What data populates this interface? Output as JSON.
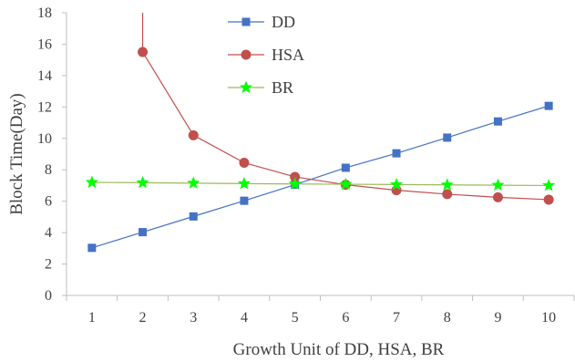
{
  "chart_data": {
    "type": "line",
    "xlabel": "Growth Unit of DD, HSA, BR",
    "ylabel": "Block Time(Day)",
    "x": [
      1,
      2,
      3,
      4,
      5,
      6,
      7,
      8,
      9,
      10
    ],
    "xlim": [
      0.5,
      10.5
    ],
    "ylim": [
      0,
      18
    ],
    "yticks": [
      0,
      2,
      4,
      6,
      8,
      10,
      12,
      14,
      16,
      18
    ],
    "grid": false,
    "legend_position": "top-center",
    "series": [
      {
        "name": "DD",
        "marker": "square",
        "color": "#4472C4",
        "x": [
          1,
          2,
          3,
          4,
          5,
          6,
          7,
          8,
          9,
          10
        ],
        "values": [
          3.03,
          4.03,
          5.03,
          6.03,
          7.05,
          8.13,
          9.05,
          10.05,
          11.08,
          12.07
        ]
      },
      {
        "name": "HSA",
        "marker": "circle",
        "color": "#C0504D",
        "line_extends_above_top": true,
        "x": [
          2,
          3,
          4,
          5,
          6,
          7,
          8,
          9,
          10
        ],
        "values": [
          15.5,
          10.2,
          8.45,
          7.55,
          7.05,
          6.7,
          6.45,
          6.25,
          6.1
        ]
      },
      {
        "name": "BR",
        "marker": "star",
        "color": "#00FF00",
        "line_color": "#9BBB59",
        "x": [
          1,
          2,
          3,
          4,
          5,
          6,
          7,
          8,
          9,
          10
        ],
        "values": [
          7.2,
          7.18,
          7.15,
          7.12,
          7.1,
          7.08,
          7.06,
          7.04,
          7.02,
          7.0
        ]
      }
    ]
  }
}
